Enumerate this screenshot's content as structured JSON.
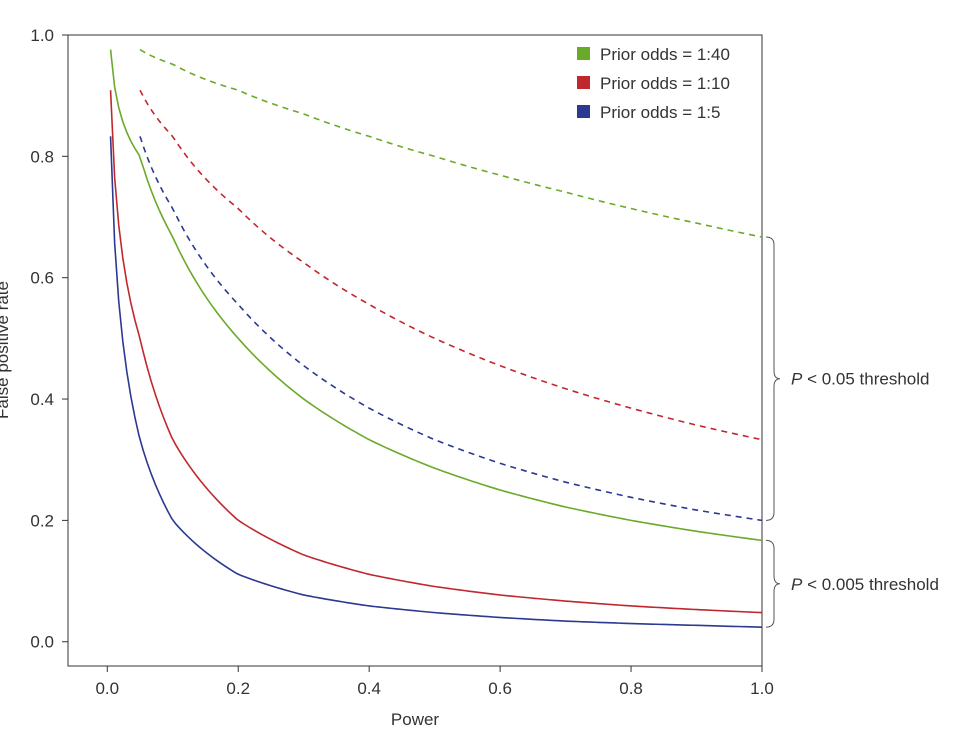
{
  "chart_data": {
    "type": "line",
    "xlabel": "Power",
    "ylabel": "False positive rate",
    "xlim": [
      -0.06,
      1.0
    ],
    "ylim": [
      -0.04,
      1.0
    ],
    "xticks": [
      "0.0",
      "0.2",
      "0.4",
      "0.6",
      "0.8",
      "1.0"
    ],
    "yticks": [
      "0.0",
      "0.2",
      "0.4",
      "0.6",
      "0.8",
      "1.0"
    ],
    "grid": false,
    "legend_position": "top-right",
    "legend": [
      {
        "label": "Prior odds = 1:40",
        "color": "#6aaa2a"
      },
      {
        "label": "Prior odds = 1:10",
        "color": "#c0282d"
      },
      {
        "label": "Prior odds = 1:5",
        "color": "#2b3990"
      }
    ],
    "series": [
      {
        "color": "#6aaa2a",
        "style": "dashed",
        "x_range": [
          0.05,
          1.0
        ],
        "x": [
          0.05,
          0.1,
          0.2,
          0.3,
          0.4,
          0.5,
          0.6,
          0.7,
          0.8,
          0.9,
          1.0
        ],
        "values": [
          0.976,
          0.952,
          0.909,
          0.87,
          0.833,
          0.8,
          0.769,
          0.741,
          0.714,
          0.69,
          0.667
        ]
      },
      {
        "color": "#c0282d",
        "style": "dashed",
        "x_range": [
          0.05,
          1.0
        ],
        "x": [
          0.05,
          0.1,
          0.2,
          0.3,
          0.4,
          0.5,
          0.6,
          0.7,
          0.8,
          0.9,
          1.0
        ],
        "values": [
          0.909,
          0.833,
          0.714,
          0.625,
          0.556,
          0.5,
          0.455,
          0.417,
          0.385,
          0.357,
          0.333
        ]
      },
      {
        "color": "#2b3990",
        "style": "dashed",
        "x_range": [
          0.05,
          1.0
        ],
        "x": [
          0.05,
          0.1,
          0.2,
          0.3,
          0.4,
          0.5,
          0.6,
          0.7,
          0.8,
          0.9,
          1.0
        ],
        "values": [
          0.833,
          0.714,
          0.556,
          0.455,
          0.385,
          0.333,
          0.294,
          0.263,
          0.238,
          0.217,
          0.2
        ]
      },
      {
        "color": "#6aaa2a",
        "style": "solid",
        "x_range": [
          0.005,
          1.0
        ],
        "x": [
          0.005,
          0.05,
          0.1,
          0.2,
          0.3,
          0.4,
          0.5,
          0.6,
          0.7,
          0.8,
          0.9,
          1.0
        ],
        "values": [
          0.976,
          0.8,
          0.667,
          0.5,
          0.4,
          0.333,
          0.286,
          0.25,
          0.222,
          0.2,
          0.182,
          0.167
        ]
      },
      {
        "color": "#c0282d",
        "style": "solid",
        "x_range": [
          0.005,
          1.0
        ],
        "x": [
          0.005,
          0.05,
          0.1,
          0.2,
          0.3,
          0.4,
          0.5,
          0.6,
          0.7,
          0.8,
          0.9,
          1.0
        ],
        "values": [
          0.909,
          0.5,
          0.333,
          0.2,
          0.143,
          0.111,
          0.091,
          0.077,
          0.067,
          0.059,
          0.053,
          0.048
        ]
      },
      {
        "color": "#2b3990",
        "style": "solid",
        "x_range": [
          0.005,
          1.0
        ],
        "x": [
          0.005,
          0.05,
          0.1,
          0.2,
          0.3,
          0.4,
          0.5,
          0.6,
          0.7,
          0.8,
          0.9,
          1.0
        ],
        "values": [
          0.833,
          0.333,
          0.2,
          0.111,
          0.077,
          0.059,
          0.048,
          0.04,
          0.034,
          0.03,
          0.027,
          0.024
        ]
      }
    ],
    "annotations": [
      {
        "label": "P < 0.05 threshold",
        "italic_prefix": "P",
        "rest": " < 0.05 threshold",
        "y_range": [
          0.2,
          0.667
        ]
      },
      {
        "label": "P < 0.005 threshold",
        "italic_prefix": "P",
        "rest": " < 0.005 threshold",
        "y_range": [
          0.024,
          0.167
        ]
      }
    ]
  }
}
